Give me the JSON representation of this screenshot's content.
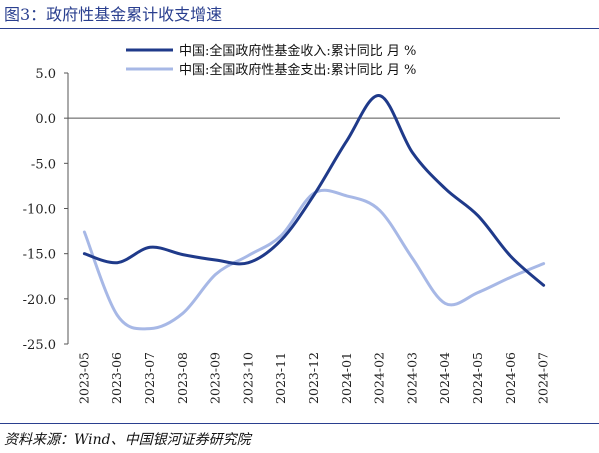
{
  "figure": {
    "title": "图3：政府性基金累计收支增速",
    "source": "资料来源：Wind、中国银河证券研究院"
  },
  "colors": {
    "accent": "#2a3f8f",
    "series_dark": "#1f3a8a",
    "series_light": "#a7b8e6"
  },
  "chart_data": {
    "type": "line",
    "categories": [
      "2023-05",
      "2023-06",
      "2023-07",
      "2023-08",
      "2023-09",
      "2023-10",
      "2023-11",
      "2023-12",
      "2024-01",
      "2024-02",
      "2024-03",
      "2024-04",
      "2024-05",
      "2024-06",
      "2024-07"
    ],
    "series": [
      {
        "name": "中国:全国政府性基金收入:累计同比 月 %",
        "values": [
          -15.0,
          -16.0,
          -14.3,
          -15.1,
          -15.7,
          -16.0,
          -13.5,
          -8.5,
          -2.5,
          2.5,
          -3.8,
          -7.8,
          -10.8,
          -15.3,
          -18.5
        ]
      },
      {
        "name": "中国:全国政府性基金支出:累计同比 月 %",
        "values": [
          -12.6,
          -21.8,
          -23.3,
          -21.6,
          -17.3,
          -15.2,
          -13.0,
          -8.3,
          -8.6,
          -10.2,
          -15.5,
          -20.5,
          -19.3,
          -17.6,
          -16.1
        ]
      }
    ],
    "yticks": [
      "5.0",
      "0.0",
      "-5.0",
      "-10.0",
      "-15.0",
      "-20.0",
      "-25.0"
    ],
    "ylim": [
      -25,
      5
    ],
    "grid": false,
    "legend": "top-center"
  }
}
